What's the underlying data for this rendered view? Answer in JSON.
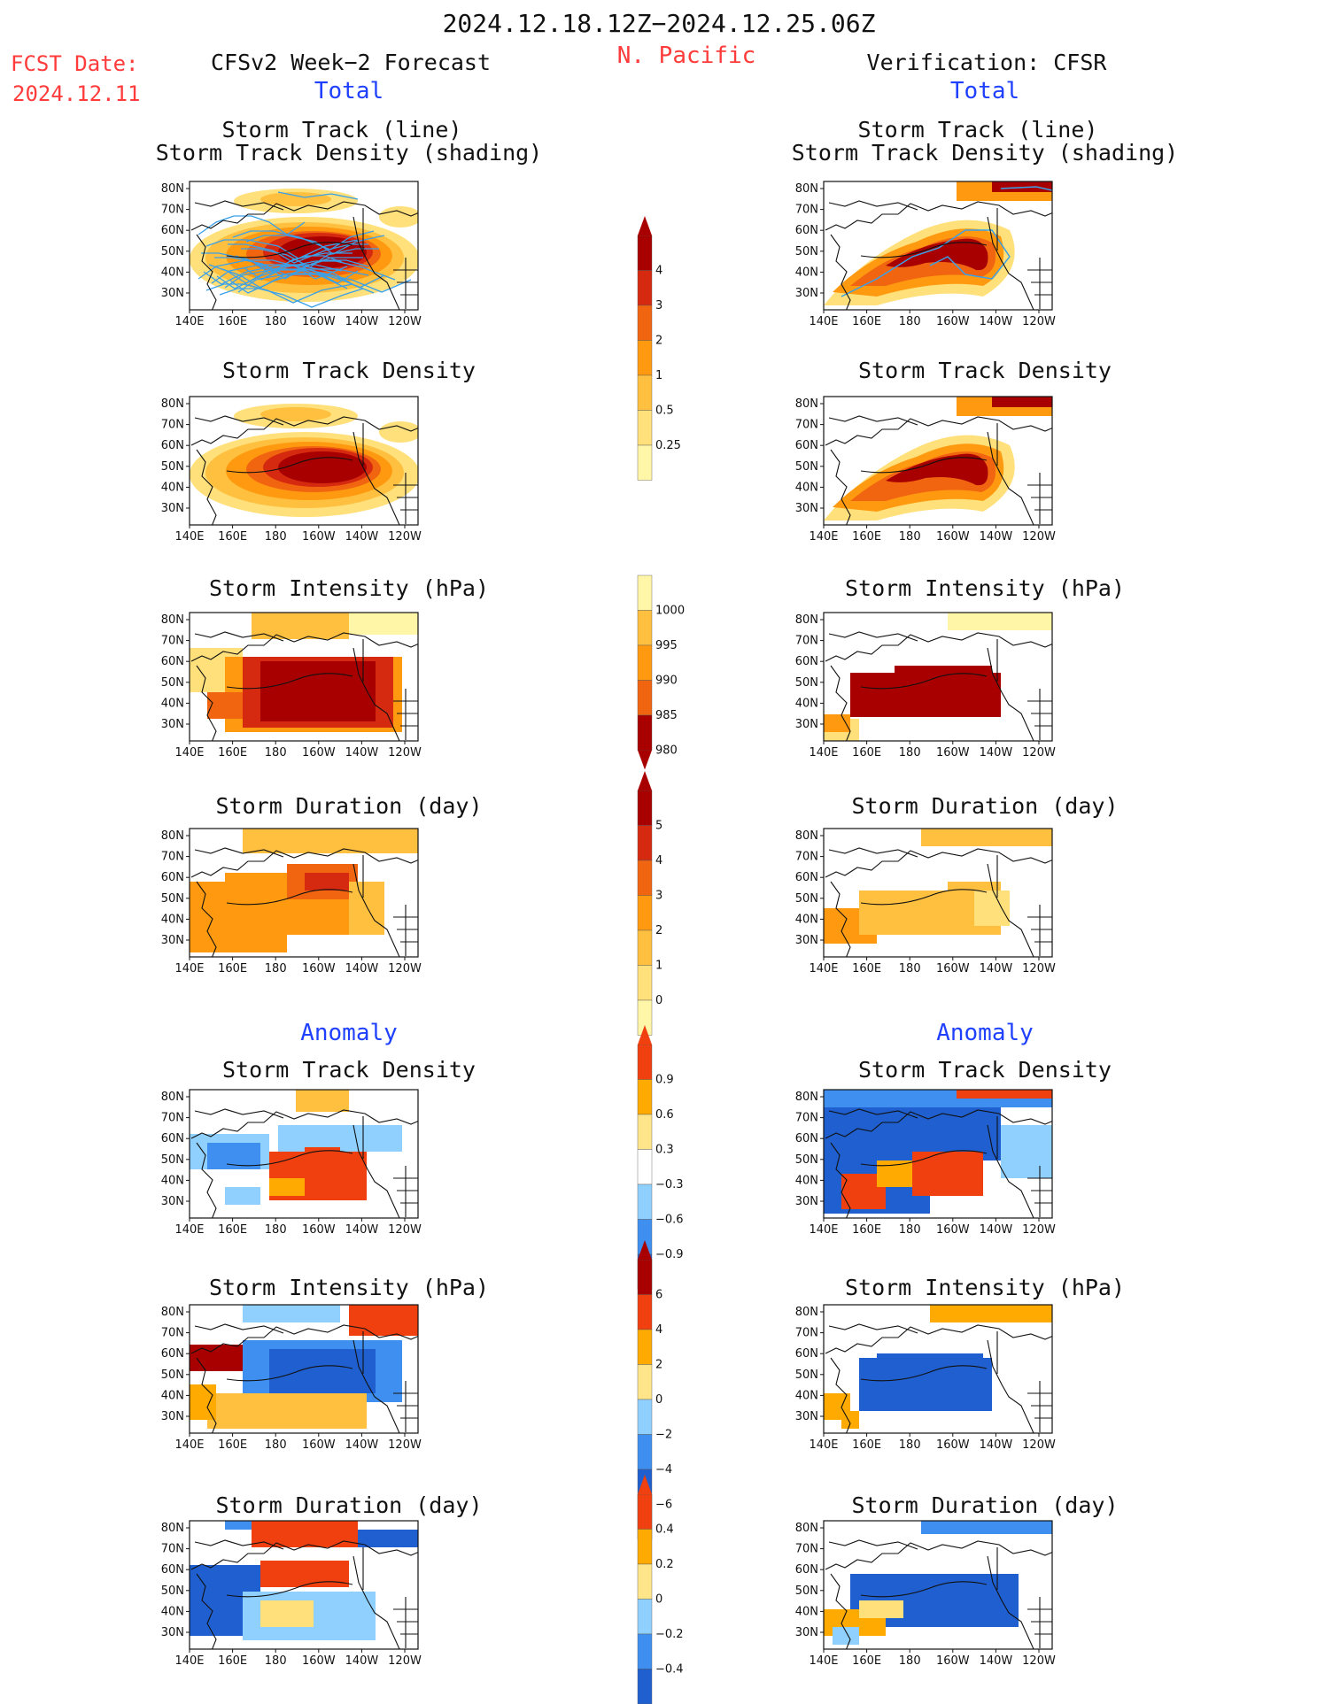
{
  "header": {
    "time_range": "2024.12.18.12Z−2024.12.25.06Z",
    "region": "N. Pacific",
    "fcst_label": "FCST Date:",
    "fcst_date": "2024.12.11",
    "left_title": "CFSv2 Week−2 Forecast",
    "right_title": "Verification: CFSR"
  },
  "sections": {
    "total": "Total",
    "anomaly": "Anomaly"
  },
  "panel_titles": {
    "track_line": "Storm Track (line)",
    "track_shading": "Storm Track Density (shading)",
    "density": "Storm Track Density",
    "intensity": "Storm Intensity (hPa)",
    "duration": "Storm Duration (day)"
  },
  "axes": {
    "lat_labels": [
      "80N",
      "70N",
      "60N",
      "50N",
      "40N",
      "30N"
    ],
    "lon_labels": [
      "140E",
      "160E",
      "180",
      "160W",
      "140W",
      "120W"
    ]
  },
  "colorbars": {
    "density_total": [
      "4",
      "3",
      "2",
      "1",
      "0.5",
      "0.25"
    ],
    "intensity_total": [
      "1000",
      "995",
      "990",
      "985",
      "980"
    ],
    "duration_total": [
      "5",
      "4",
      "3",
      "2",
      "1",
      "0"
    ],
    "density_anomaly": [
      "0.9",
      "0.6",
      "0.3",
      "−0.3",
      "−0.6",
      "−0.9"
    ],
    "intensity_anomaly": [
      "6",
      "4",
      "2",
      "0",
      "−2",
      "−4",
      "−6"
    ],
    "duration_anomaly": [
      "0.4",
      "0.2",
      "0",
      "−0.2",
      "−0.4"
    ]
  },
  "colors": {
    "header_red": "#ff3b3b",
    "section_blue": "#2040ff",
    "track_line": "#3aa0e8",
    "warm_scale": [
      "#fff6a8",
      "#ffe07a",
      "#ffc040",
      "#ff9a10",
      "#f26510",
      "#d62a10",
      "#a80000"
    ],
    "anomaly_scale": [
      "#1f5fcf",
      "#3e8ff0",
      "#8fd0ff",
      "#ffffff",
      "#ffe58a",
      "#ffaa00",
      "#f04010"
    ]
  }
}
